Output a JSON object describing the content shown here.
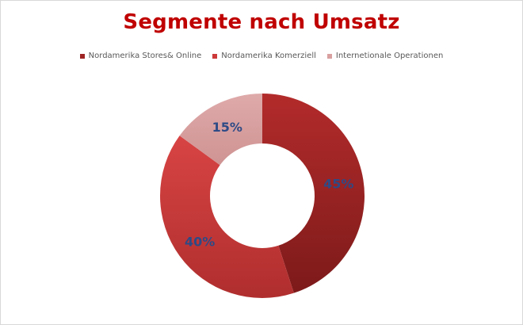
{
  "chart_data": {
    "type": "pie",
    "title": "Segmente nach Umsatz",
    "legend_position": "top",
    "categories": [
      "Nordamerika Stores& Online",
      "Nordamerika Komerziell",
      "Internetionale Operationen"
    ],
    "values": [
      45,
      40,
      15
    ],
    "data_labels": [
      "45%",
      "40%",
      "15%"
    ],
    "colors": [
      "#9e2424",
      "#cd3a3a",
      "#d9a0a0"
    ],
    "label_color": "#2e4a86"
  }
}
